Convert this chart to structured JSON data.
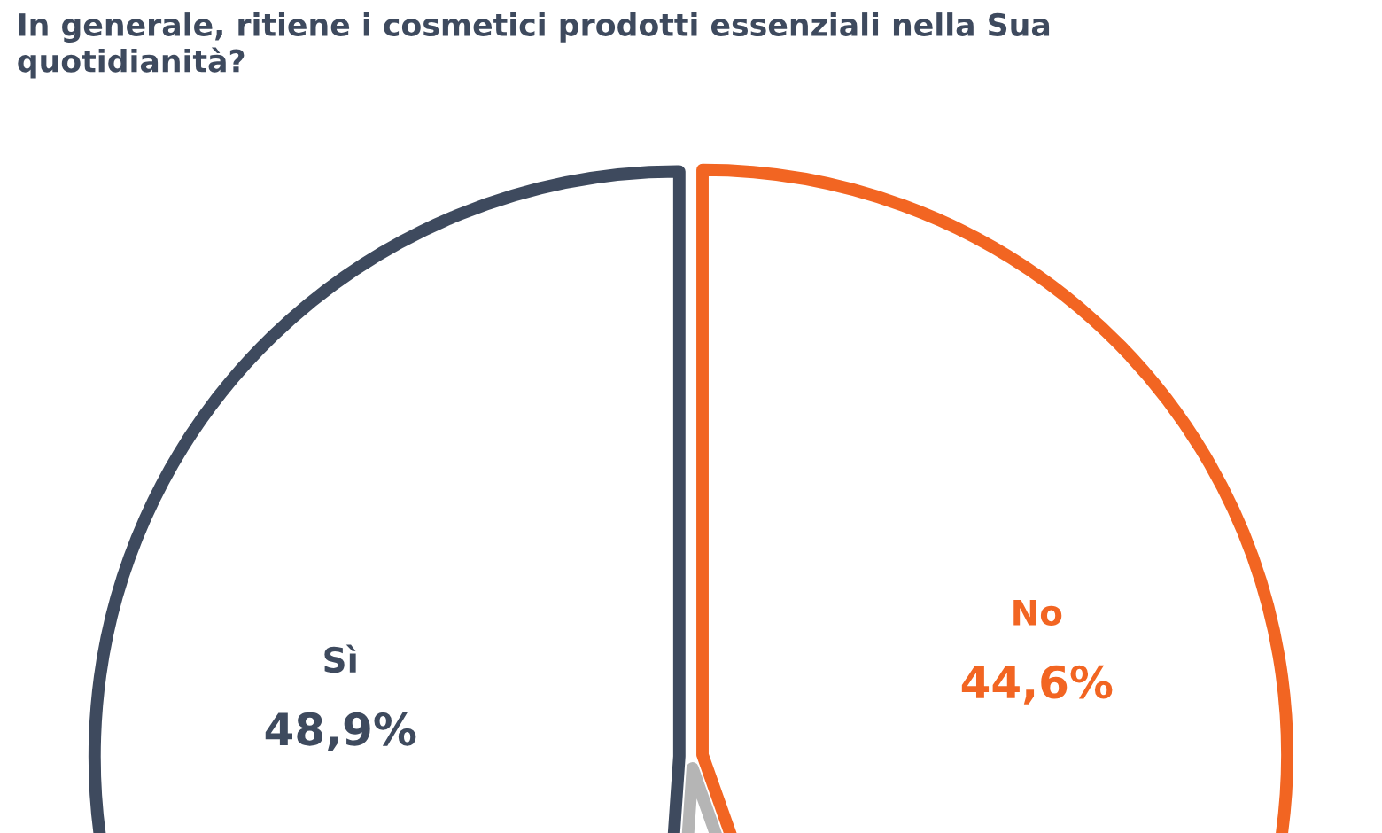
{
  "chart_data": {
    "type": "pie",
    "title": "In generale, ritiene i cosmetici prodotti essenziali nella Sua\nquotidianità?",
    "categories": [
      "Sì",
      null,
      "No"
    ],
    "values": [
      48.9,
      6.5,
      44.6
    ],
    "value_labels": [
      "48,9%",
      null,
      "44,6%"
    ],
    "colors": [
      "#3e4a5e",
      "#b5b5b5",
      "#f26522"
    ]
  }
}
